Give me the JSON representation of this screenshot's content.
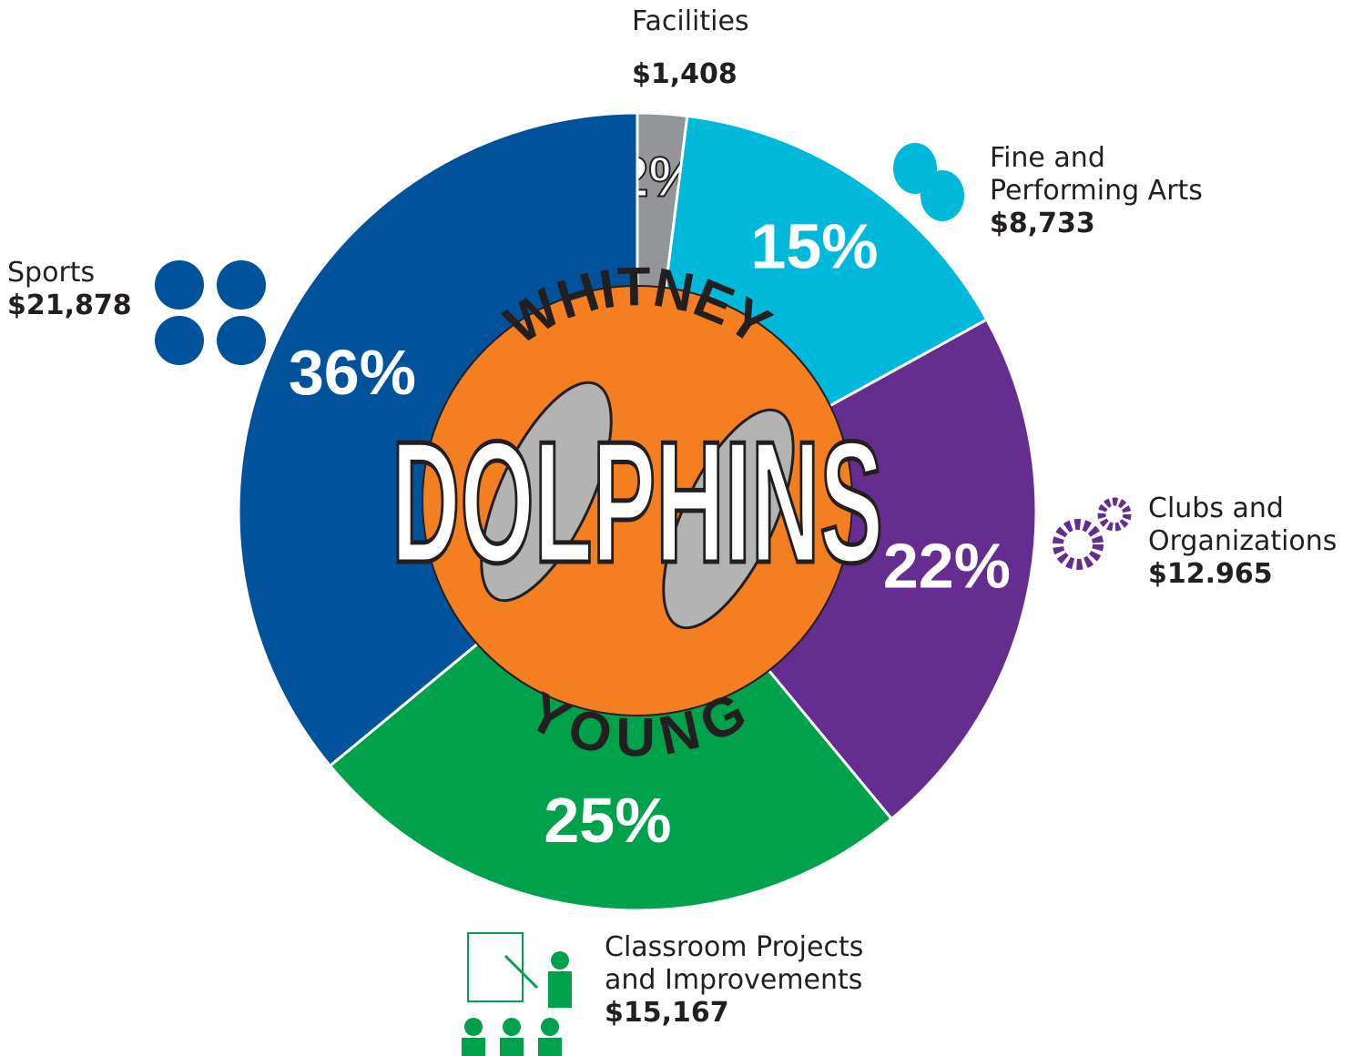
{
  "chart_data": {
    "type": "pie",
    "categories": [
      "Facilities",
      "Fine and Performing Arts",
      "Clubs and Organizations",
      "Classroom Projects and Improvements",
      "Sports"
    ],
    "values": [
      2,
      15,
      22,
      25,
      36
    ],
    "value_labels": [
      "2%",
      "15%",
      "22%",
      "25%",
      "36%"
    ],
    "amounts": [
      "$1,408",
      "$8,733",
      "$12.965",
      "$15,167",
      "$21,878"
    ],
    "colors": [
      "#939598",
      "#00b9da",
      "#662d91",
      "#00a14b",
      "#00529b"
    ],
    "logo": {
      "top": "WHITNEY",
      "middle": "DOLPHINS",
      "bottom": "YOUNG"
    }
  }
}
